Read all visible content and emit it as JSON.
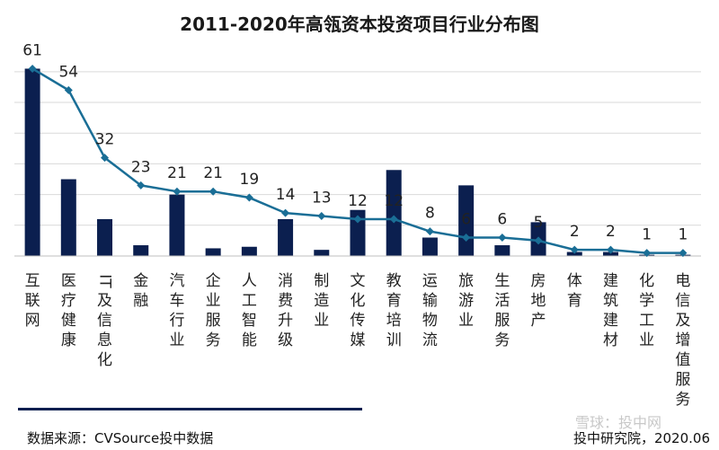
{
  "chart_data": {
    "type": "bar",
    "title": "2011-2020年高瓴资本投资项目行业分布图",
    "categories": [
      "互联网",
      "医疗健康",
      "IT及信息化",
      "金融",
      "汽车行业",
      "企业服务",
      "人工智能",
      "消费升级",
      "制造业",
      "文化传媒",
      "教育培训",
      "运输物流",
      "旅游业",
      "生活服务",
      "房地产",
      "体育",
      "建筑建材",
      "化学工业",
      "电信及增值服务"
    ],
    "series": [
      {
        "type": "bar",
        "values": [
          61,
          25,
          12,
          3.5,
          20,
          2.5,
          3,
          12,
          2,
          15,
          28,
          6,
          23,
          3.5,
          11,
          1.3,
          1.3,
          0.4,
          0.4
        ],
        "color": "#0b1f4f"
      },
      {
        "type": "line",
        "values": [
          61,
          54,
          32,
          23,
          21,
          21,
          19,
          14,
          13,
          12,
          12,
          8,
          6,
          6,
          5,
          2,
          2,
          1,
          1
        ],
        "color": "#1a6e96"
      }
    ],
    "data_labels": [
      "61",
      "54",
      "32",
      "23",
      "21",
      "21",
      "19",
      "14",
      "13",
      "12",
      "12",
      "8",
      "6",
      "6",
      "5",
      "2",
      "2",
      "1",
      "1"
    ],
    "ylim": [
      0,
      64
    ],
    "grid": true
  },
  "footer": {
    "source": "数据来源：CVSource投中数据",
    "credit": "投中研究院，2020.06",
    "watermark": "雪球：投中网"
  }
}
